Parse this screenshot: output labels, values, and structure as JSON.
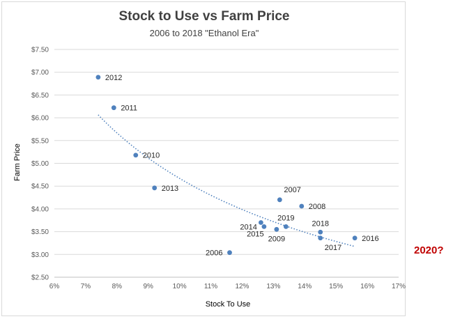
{
  "chart_data": {
    "type": "scatter",
    "title": "Stock to Use vs Farm Price",
    "subtitle": "2006  to 2018 \"Ethanol Era\"",
    "xlabel": "Stock To Use",
    "ylabel": "Farm Price",
    "xlim": [
      6,
      17
    ],
    "ylim": [
      2.5,
      7.5
    ],
    "xticks": [
      "6%",
      "7%",
      "8%",
      "9%",
      "10%",
      "11%",
      "12%",
      "13%",
      "14%",
      "15%",
      "16%",
      "17%"
    ],
    "yticks": [
      "$2.50",
      "$3.00",
      "$3.50",
      "$4.00",
      "$4.50",
      "$5.00",
      "$5.50",
      "$6.00",
      "$6.50",
      "$7.00",
      "$7.50"
    ],
    "grid": "horizontal",
    "marker_color": "#4f81bd",
    "trendline": {
      "type": "power",
      "x_range": [
        7.4,
        15.6
      ],
      "color": "#4f81bd",
      "style": "dotted"
    },
    "points": [
      {
        "label": "2012",
        "x": 7.4,
        "y": 6.89,
        "label_pos": "right"
      },
      {
        "label": "2011",
        "x": 7.9,
        "y": 6.22,
        "label_pos": "right"
      },
      {
        "label": "2010",
        "x": 8.6,
        "y": 5.18,
        "label_pos": "right"
      },
      {
        "label": "2013",
        "x": 9.2,
        "y": 4.46,
        "label_pos": "right"
      },
      {
        "label": "2006",
        "x": 11.6,
        "y": 3.04,
        "label_pos": "left"
      },
      {
        "label": "2015",
        "x": 12.6,
        "y": 3.7,
        "label_pos": "below-left"
      },
      {
        "label": "2014",
        "x": 12.7,
        "y": 3.61,
        "label_pos": "left"
      },
      {
        "label": "2009",
        "x": 13.1,
        "y": 3.55,
        "label_pos": "below"
      },
      {
        "label": "2007",
        "x": 13.2,
        "y": 4.2,
        "label_pos": "above-right"
      },
      {
        "label": "2019",
        "x": 13.4,
        "y": 3.61,
        "label_pos": "above"
      },
      {
        "label": "2008",
        "x": 13.9,
        "y": 4.06,
        "label_pos": "right"
      },
      {
        "label": "2018",
        "x": 14.5,
        "y": 3.49,
        "label_pos": "above"
      },
      {
        "label": "2017",
        "x": 14.5,
        "y": 3.36,
        "label_pos": "below-right"
      },
      {
        "label": "2016",
        "x": 15.6,
        "y": 3.36,
        "label_pos": "right"
      }
    ]
  },
  "annotation": "2020?"
}
